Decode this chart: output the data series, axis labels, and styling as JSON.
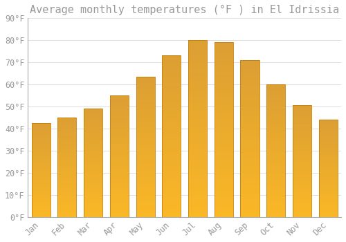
{
  "title": "Average monthly temperatures (°F ) in El Idrissia",
  "months": [
    "Jan",
    "Feb",
    "Mar",
    "Apr",
    "May",
    "Jun",
    "Jul",
    "Aug",
    "Sep",
    "Oct",
    "Nov",
    "Dec"
  ],
  "values": [
    42.5,
    45,
    49,
    55,
    63.5,
    73,
    80,
    79,
    71,
    60,
    50.5,
    44
  ],
  "bar_color_top": "#F5A623",
  "bar_color_bottom": "#FFD070",
  "bar_edge_color": "#C87D00",
  "ylim": [
    0,
    90
  ],
  "yticks": [
    0,
    10,
    20,
    30,
    40,
    50,
    60,
    70,
    80,
    90
  ],
  "ytick_labels": [
    "0°F",
    "10°F",
    "20°F",
    "30°F",
    "40°F",
    "50°F",
    "60°F",
    "70°F",
    "80°F",
    "90°F"
  ],
  "background_color": "#FFFFFF",
  "grid_color": "#DDDDDD",
  "title_fontsize": 11,
  "tick_fontsize": 8.5,
  "tick_color": "#999999",
  "font_family": "monospace"
}
